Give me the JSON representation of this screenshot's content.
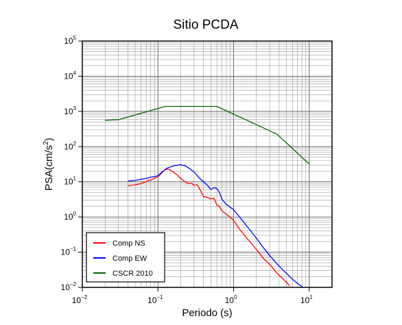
{
  "chart_data": {
    "type": "line",
    "title": "Sitio PCDA",
    "xlabel": "Periodo (s)",
    "ylabel_main": "PSA(cm/s",
    "ylabel_sup": "2",
    "ylabel_close": ")",
    "x_scale": "log",
    "y_scale": "log",
    "xlim": [
      0.01,
      20
    ],
    "ylim": [
      0.01,
      100000
    ],
    "grid": true,
    "legend_position": "bottom-left",
    "x_ticks": [
      {
        "base": "10",
        "exp": "−2",
        "value": 0.01
      },
      {
        "base": "10",
        "exp": "−1",
        "value": 0.1
      },
      {
        "base": "10",
        "exp": "0",
        "value": 1
      },
      {
        "base": "10",
        "exp": "1",
        "value": 10
      }
    ],
    "y_ticks": [
      {
        "base": "10",
        "exp": "−2",
        "value": 0.01
      },
      {
        "base": "10",
        "exp": "−1",
        "value": 0.1
      },
      {
        "base": "10",
        "exp": "0",
        "value": 1
      },
      {
        "base": "10",
        "exp": "1",
        "value": 10
      },
      {
        "base": "10",
        "exp": "2",
        "value": 100
      },
      {
        "base": "10",
        "exp": "3",
        "value": 1000
      },
      {
        "base": "10",
        "exp": "4",
        "value": 10000
      },
      {
        "base": "10",
        "exp": "5",
        "value": 100000
      }
    ],
    "series": [
      {
        "name": "Comp NS",
        "color": "#ff0000",
        "points": [
          [
            0.04,
            7.8
          ],
          [
            0.05,
            8.2
          ],
          [
            0.06,
            9.0
          ],
          [
            0.07,
            10.0
          ],
          [
            0.075,
            11.2
          ],
          [
            0.08,
            11.0
          ],
          [
            0.09,
            12.5
          ],
          [
            0.1,
            14.0
          ],
          [
            0.11,
            17.0
          ],
          [
            0.12,
            21.0
          ],
          [
            0.13,
            23.0
          ],
          [
            0.14,
            22.5
          ],
          [
            0.16,
            19.0
          ],
          [
            0.18,
            15.5
          ],
          [
            0.2,
            12.5
          ],
          [
            0.22,
            10.5
          ],
          [
            0.25,
            9.0
          ],
          [
            0.28,
            9.0
          ],
          [
            0.3,
            8.0
          ],
          [
            0.33,
            8.2
          ],
          [
            0.36,
            6.0
          ],
          [
            0.4,
            3.8
          ],
          [
            0.45,
            3.6
          ],
          [
            0.5,
            3.3
          ],
          [
            0.55,
            3.4
          ],
          [
            0.6,
            2.2
          ],
          [
            0.65,
            2.0
          ],
          [
            0.7,
            1.5
          ],
          [
            0.8,
            1.2
          ],
          [
            0.9,
            1.0
          ],
          [
            1.0,
            0.8
          ],
          [
            1.2,
            0.45
          ],
          [
            1.5,
            0.25
          ],
          [
            2.0,
            0.12
          ],
          [
            2.5,
            0.065
          ],
          [
            3.0,
            0.045
          ],
          [
            3.5,
            0.03
          ],
          [
            4.0,
            0.022
          ],
          [
            5.0,
            0.014
          ],
          [
            5.5,
            0.011
          ]
        ]
      },
      {
        "name": "Comp EW",
        "color": "#0000ff",
        "points": [
          [
            0.04,
            10.5
          ],
          [
            0.05,
            11.0
          ],
          [
            0.06,
            11.8
          ],
          [
            0.07,
            12.5
          ],
          [
            0.08,
            13.5
          ],
          [
            0.09,
            14.0
          ],
          [
            0.1,
            15.0
          ],
          [
            0.11,
            18.0
          ],
          [
            0.12,
            21.0
          ],
          [
            0.13,
            24.0
          ],
          [
            0.15,
            27.0
          ],
          [
            0.17,
            29.0
          ],
          [
            0.2,
            30.5
          ],
          [
            0.23,
            28.5
          ],
          [
            0.26,
            24.0
          ],
          [
            0.3,
            19.0
          ],
          [
            0.35,
            13.0
          ],
          [
            0.4,
            10.0
          ],
          [
            0.45,
            8.0
          ],
          [
            0.5,
            6.0
          ],
          [
            0.55,
            6.8
          ],
          [
            0.6,
            6.5
          ],
          [
            0.65,
            5.0
          ],
          [
            0.7,
            3.2
          ],
          [
            0.8,
            2.3
          ],
          [
            0.9,
            1.9
          ],
          [
            1.0,
            1.6
          ],
          [
            1.2,
            1.0
          ],
          [
            1.5,
            0.55
          ],
          [
            2.0,
            0.25
          ],
          [
            2.5,
            0.13
          ],
          [
            3.0,
            0.08
          ],
          [
            4.0,
            0.04
          ],
          [
            5.0,
            0.025
          ],
          [
            6.0,
            0.017
          ],
          [
            7.0,
            0.013
          ],
          [
            8.5,
            0.0095
          ]
        ]
      },
      {
        "name": "CSCR 2010",
        "color": "#006400",
        "points": [
          [
            0.02,
            560
          ],
          [
            0.03,
            580
          ],
          [
            0.125,
            1390
          ],
          [
            0.6,
            1390
          ],
          [
            3.75,
            225
          ],
          [
            10.0,
            32
          ]
        ]
      }
    ]
  }
}
